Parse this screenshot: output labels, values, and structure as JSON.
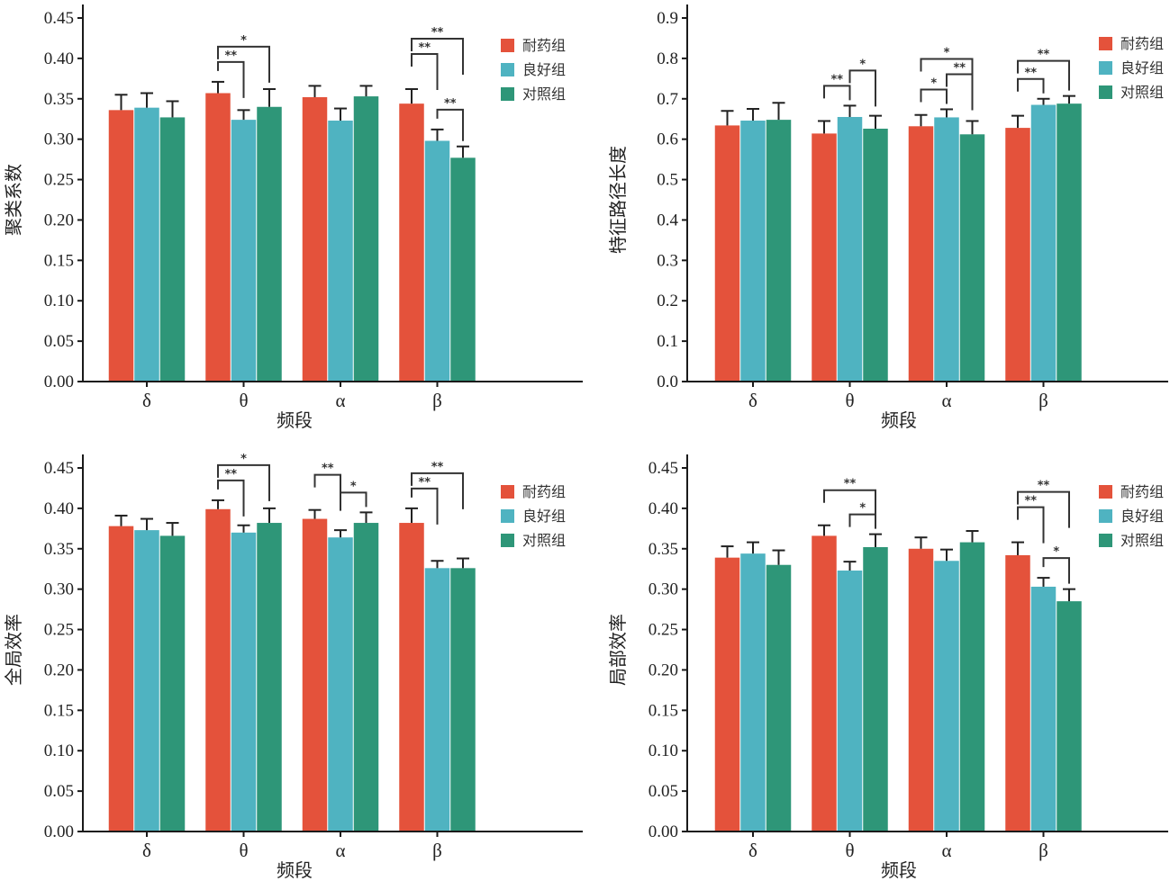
{
  "colors": {
    "耐药组": "#E4523B",
    "良好组": "#4FB3C1",
    "对照组": "#2E9678",
    "axis": "#1a1a1a",
    "bracket": "#333333"
  },
  "chart_data": [
    {
      "type": "bar",
      "title": "",
      "xlabel": "频段",
      "ylabel": "聚类系数",
      "categories": [
        "δ",
        "θ",
        "α",
        "β"
      ],
      "ylim": [
        0,
        0.45
      ],
      "yticks": [
        "0.00",
        "0.05",
        "0.10",
        "0.15",
        "0.20",
        "0.25",
        "0.30",
        "0.35",
        "0.40",
        "0.45"
      ],
      "legend_position": "top-right",
      "series": [
        {
          "name": "耐药组",
          "values": [
            0.336,
            0.357,
            0.352,
            0.344
          ],
          "error": [
            0.019,
            0.014,
            0.014,
            0.018
          ]
        },
        {
          "name": "良好组",
          "values": [
            0.339,
            0.324,
            0.323,
            0.298
          ],
          "error": [
            0.018,
            0.012,
            0.015,
            0.014
          ]
        },
        {
          "name": "对照组",
          "values": [
            0.327,
            0.34,
            0.353,
            0.277
          ],
          "error": [
            0.02,
            0.022,
            0.013,
            0.014
          ]
        }
      ],
      "significance": [
        {
          "category": "θ",
          "from": 0,
          "to": 1,
          "label": "**",
          "level": 0
        },
        {
          "category": "θ",
          "from": 0,
          "to": 2,
          "label": "*",
          "level": 1
        },
        {
          "category": "β",
          "from": 1,
          "to": 2,
          "label": "**",
          "level": 0
        },
        {
          "category": "β",
          "from": 0,
          "to": 1,
          "label": "**",
          "level": 1
        },
        {
          "category": "β",
          "from": 0,
          "to": 2,
          "label": "**",
          "level": 2
        }
      ]
    },
    {
      "type": "bar",
      "title": "",
      "xlabel": "频段",
      "ylabel": "特征路径长度",
      "categories": [
        "δ",
        "θ",
        "α",
        "β"
      ],
      "ylim": [
        0,
        0.9
      ],
      "yticks": [
        "0.0",
        "0.1",
        "0.2",
        "0.3",
        "0.4",
        "0.5",
        "0.6",
        "0.7",
        "0.8",
        "0.9"
      ],
      "legend_position": "top-right",
      "series": [
        {
          "name": "耐药组",
          "values": [
            0.634,
            0.614,
            0.632,
            0.628
          ],
          "error": [
            0.036,
            0.031,
            0.028,
            0.03
          ]
        },
        {
          "name": "良好组",
          "values": [
            0.646,
            0.655,
            0.654,
            0.685
          ],
          "error": [
            0.029,
            0.028,
            0.02,
            0.015
          ]
        },
        {
          "name": "对照组",
          "values": [
            0.648,
            0.626,
            0.612,
            0.688
          ],
          "error": [
            0.042,
            0.032,
            0.033,
            0.019
          ]
        }
      ],
      "significance": [
        {
          "category": "θ",
          "from": 0,
          "to": 1,
          "label": "**",
          "level": 0
        },
        {
          "category": "θ",
          "from": 1,
          "to": 2,
          "label": "*",
          "level": 1
        },
        {
          "category": "α",
          "from": 0,
          "to": 1,
          "label": "*",
          "level": 0
        },
        {
          "category": "α",
          "from": 1,
          "to": 2,
          "label": "**",
          "level": 1
        },
        {
          "category": "α",
          "from": 0,
          "to": 2,
          "label": "*",
          "level": 2
        },
        {
          "category": "β",
          "from": 0,
          "to": 1,
          "label": "**",
          "level": 0
        },
        {
          "category": "β",
          "from": 0,
          "to": 2,
          "label": "**",
          "level": 1
        }
      ]
    },
    {
      "type": "bar",
      "title": "",
      "xlabel": "频段",
      "ylabel": "全局效率",
      "categories": [
        "δ",
        "θ",
        "α",
        "β"
      ],
      "ylim": [
        0,
        0.45
      ],
      "yticks": [
        "0.00",
        "0.05",
        "0.10",
        "0.15",
        "0.20",
        "0.25",
        "0.30",
        "0.35",
        "0.40",
        "0.45"
      ],
      "legend_position": "top-right",
      "series": [
        {
          "name": "耐药组",
          "values": [
            0.378,
            0.399,
            0.387,
            0.382
          ],
          "error": [
            0.013,
            0.011,
            0.011,
            0.018
          ]
        },
        {
          "name": "良好组",
          "values": [
            0.373,
            0.37,
            0.364,
            0.326
          ],
          "error": [
            0.014,
            0.009,
            0.009,
            0.009
          ]
        },
        {
          "name": "对照组",
          "values": [
            0.366,
            0.382,
            0.382,
            0.326
          ],
          "error": [
            0.016,
            0.018,
            0.013,
            0.012
          ]
        }
      ],
      "significance": [
        {
          "category": "θ",
          "from": 0,
          "to": 1,
          "label": "**",
          "level": 0
        },
        {
          "category": "θ",
          "from": 0,
          "to": 2,
          "label": "*",
          "level": 1
        },
        {
          "category": "α",
          "from": 1,
          "to": 2,
          "label": "*",
          "level": 0
        },
        {
          "category": "α",
          "from": 0,
          "to": 1,
          "label": "**",
          "level": 1
        },
        {
          "category": "β",
          "from": 0,
          "to": 1,
          "label": "**",
          "level": 0
        },
        {
          "category": "β",
          "from": 0,
          "to": 2,
          "label": "**",
          "level": 1
        }
      ]
    },
    {
      "type": "bar",
      "title": "",
      "xlabel": "频段",
      "ylabel": "局部效率",
      "categories": [
        "δ",
        "θ",
        "α",
        "β"
      ],
      "ylim": [
        0,
        0.45
      ],
      "yticks": [
        "0.00",
        "0.05",
        "0.10",
        "0.15",
        "0.20",
        "0.25",
        "0.30",
        "0.35",
        "0.40",
        "0.45"
      ],
      "legend_position": "top-right",
      "series": [
        {
          "name": "耐药组",
          "values": [
            0.339,
            0.366,
            0.35,
            0.342
          ],
          "error": [
            0.014,
            0.013,
            0.014,
            0.016
          ]
        },
        {
          "name": "良好组",
          "values": [
            0.344,
            0.323,
            0.335,
            0.303
          ],
          "error": [
            0.014,
            0.011,
            0.014,
            0.011
          ]
        },
        {
          "name": "对照组",
          "values": [
            0.33,
            0.352,
            0.358,
            0.285
          ],
          "error": [
            0.018,
            0.016,
            0.014,
            0.015
          ]
        }
      ],
      "significance": [
        {
          "category": "θ",
          "from": 1,
          "to": 2,
          "label": "*",
          "level": 0
        },
        {
          "category": "θ",
          "from": 0,
          "to": 2,
          "label": "**",
          "level": 1
        },
        {
          "category": "β",
          "from": 1,
          "to": 2,
          "label": "*",
          "level": 0
        },
        {
          "category": "β",
          "from": 0,
          "to": 1,
          "label": "**",
          "level": 1
        },
        {
          "category": "β",
          "from": 0,
          "to": 2,
          "label": "**",
          "level": 2
        }
      ]
    }
  ]
}
